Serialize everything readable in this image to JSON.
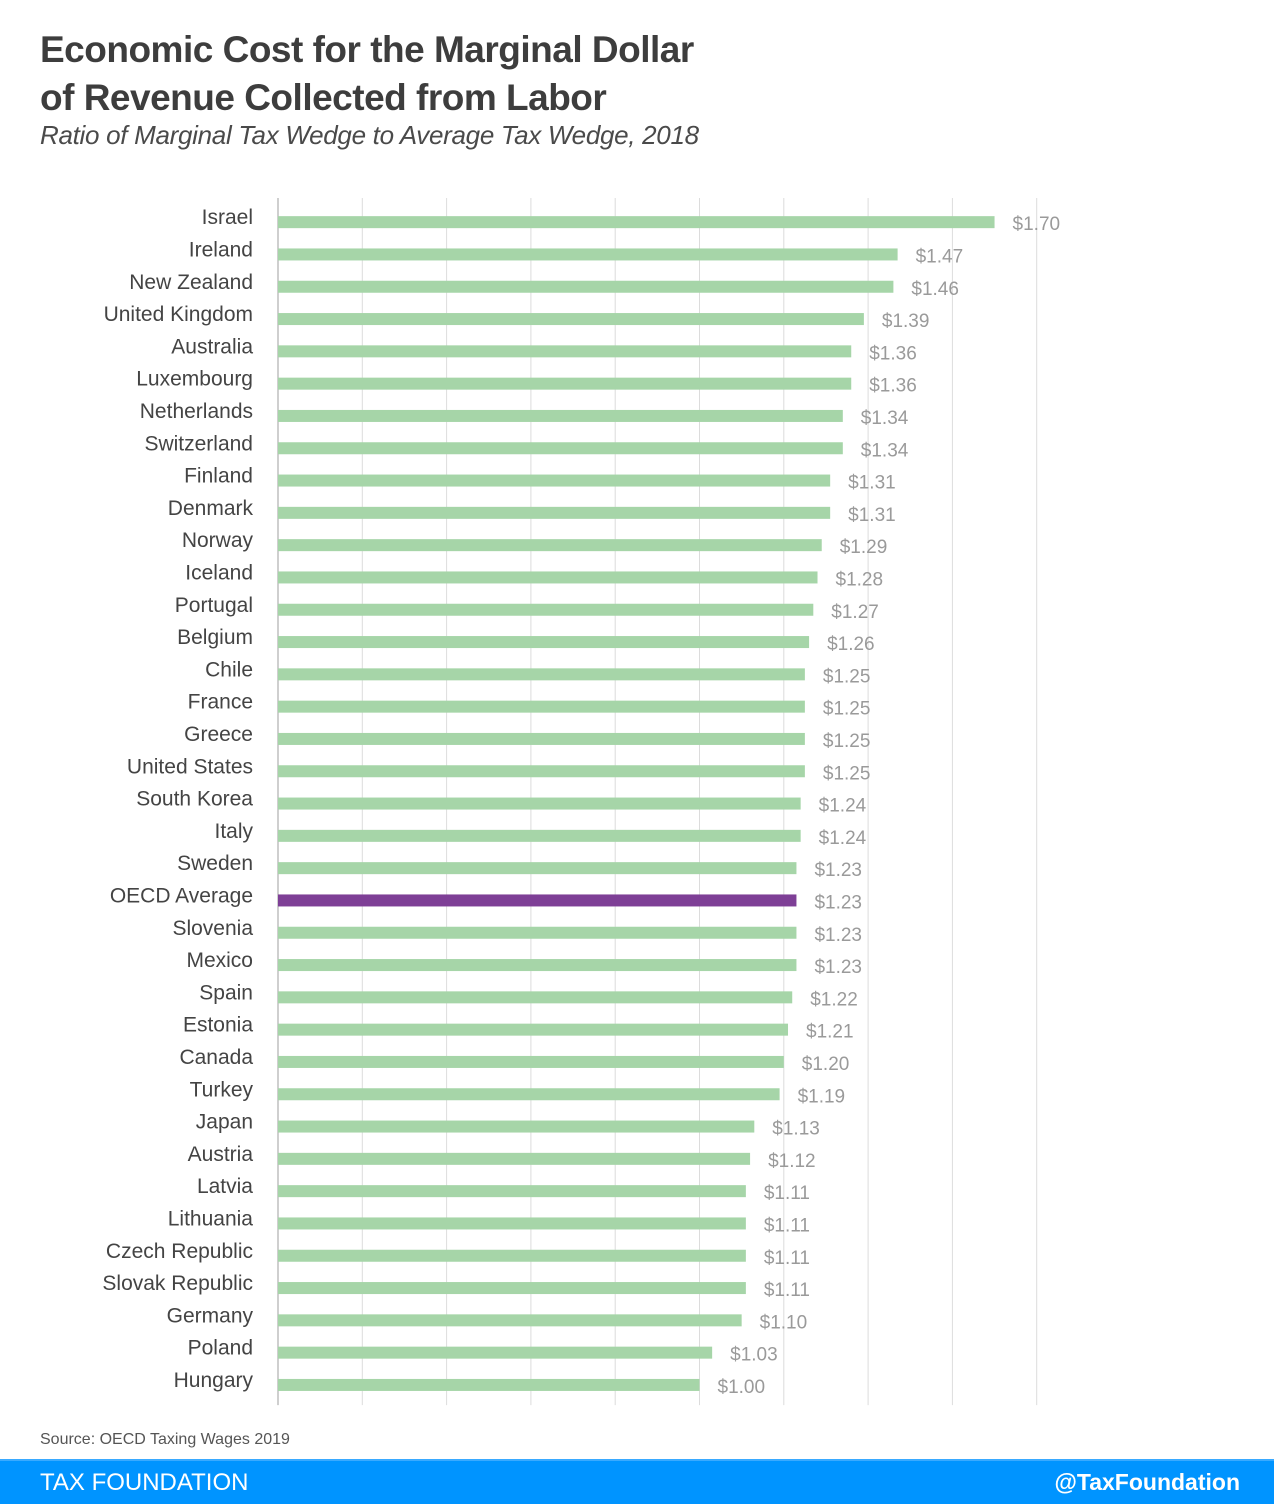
{
  "header": {
    "title_line1": "Economic Cost for the Marginal Dollar",
    "title_line2": "of Revenue Collected from Labor",
    "subtitle": "Ratio of Marginal Tax Wedge to Average Tax Wedge, 2018"
  },
  "source": "Source: OECD Taxing Wages 2019",
  "footer": {
    "brand": "TAX FOUNDATION",
    "handle": "@TaxFoundation"
  },
  "colors": {
    "bar": "#a6d5a8",
    "highlight_bar": "#7e3f96",
    "gridline": "#dcdcdc",
    "footer": "#0094ff"
  },
  "chart_data": {
    "type": "bar",
    "orientation": "horizontal",
    "title": "Economic Cost for the Marginal Dollar of Revenue Collected from Labor",
    "subtitle": "Ratio of Marginal Tax Wedge to Average Tax Wedge, 2018",
    "xlabel": "",
    "ylabel": "",
    "xlim": [
      0,
      1.8
    ],
    "grid_step": 0.2,
    "grid": true,
    "legend": "none",
    "value_prefix": "$",
    "highlight": "OECD Average",
    "categories": [
      "Israel",
      "Ireland",
      "New Zealand",
      "United Kingdom",
      "Australia",
      "Luxembourg",
      "Netherlands",
      "Switzerland",
      "Finland",
      "Denmark",
      "Norway",
      "Iceland",
      "Portugal",
      "Belgium",
      "Chile",
      "France",
      "Greece",
      "United States",
      "South Korea",
      "Italy",
      "Sweden",
      "OECD Average",
      "Slovenia",
      "Mexico",
      "Spain",
      "Estonia",
      "Canada",
      "Turkey",
      "Japan",
      "Austria",
      "Latvia",
      "Lithuania",
      "Czech Republic",
      "Slovak Republic",
      "Germany",
      "Poland",
      "Hungary"
    ],
    "values": [
      1.7,
      1.47,
      1.46,
      1.39,
      1.36,
      1.36,
      1.34,
      1.34,
      1.31,
      1.31,
      1.29,
      1.28,
      1.27,
      1.26,
      1.25,
      1.25,
      1.25,
      1.25,
      1.24,
      1.24,
      1.23,
      1.23,
      1.23,
      1.23,
      1.22,
      1.21,
      1.2,
      1.19,
      1.13,
      1.12,
      1.11,
      1.11,
      1.11,
      1.11,
      1.1,
      1.03,
      1.0
    ],
    "value_labels": [
      "$1.70",
      "$1.47",
      "$1.46",
      "$1.39",
      "$1.36",
      "$1.36",
      "$1.34",
      "$1.34",
      "$1.31",
      "$1.31",
      "$1.29",
      "$1.28",
      "$1.27",
      "$1.26",
      "$1.25",
      "$1.25",
      "$1.25",
      "$1.25",
      "$1.24",
      "$1.24",
      "$1.23",
      "$1.23",
      "$1.23",
      "$1.23",
      "$1.22",
      "$1.21",
      "$1.20",
      "$1.19",
      "$1.13",
      "$1.12",
      "$1.11",
      "$1.11",
      "$1.11",
      "$1.11",
      "$1.10",
      "$1.03",
      "$1.00"
    ]
  }
}
